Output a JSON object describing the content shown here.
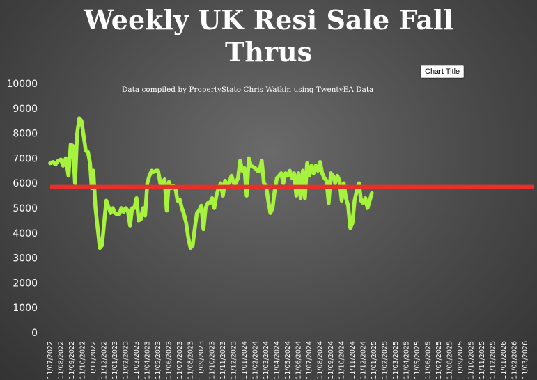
{
  "chart_data": {
    "type": "line",
    "title_lines": [
      "Weekly UK Resi Sale Fall",
      "Thrus"
    ],
    "subtitle": "Data compiled by PropertyStato Chris Watkin using TwentyEA Data",
    "tooltip": "Chart Title",
    "ylim": [
      0,
      10000
    ],
    "yticks": [
      "0",
      "1000",
      "2000",
      "3000",
      "4000",
      "5000",
      "6000",
      "7000",
      "8000",
      "9000",
      "10000"
    ],
    "xticks": [
      "11/07/2022",
      "11/08/2022",
      "11/09/2022",
      "11/10/2022",
      "11/11/2022",
      "11/12/2022",
      "11/01/2023",
      "11/02/2023",
      "11/03/2023",
      "11/04/2023",
      "11/05/2023",
      "11/06/2023",
      "11/07/2023",
      "11/08/2023",
      "11/09/2023",
      "11/10/2023",
      "11/11/2023",
      "11/12/2023",
      "11/01/2024",
      "11/02/2024",
      "11/03/2024",
      "11/04/2024",
      "11/05/2024",
      "11/06/2024",
      "11/07/2024",
      "11/08/2024",
      "11/09/2024",
      "11/10/2024",
      "11/11/2024",
      "11/12/2024",
      "11/01/2025",
      "11/02/2025",
      "11/03/2025",
      "11/04/2025",
      "11/05/2025",
      "11/06/2025",
      "11/07/2025",
      "11/08/2025",
      "11/09/2025",
      "11/10/2025",
      "11/11/2025",
      "11/12/2025",
      "11/01/2026",
      "11/02/2026",
      "11/03/2026"
    ],
    "grid": false,
    "legend": "none",
    "average_line": {
      "value": 5850,
      "color": "#e8302a"
    },
    "series": [
      {
        "color": "#a6f23c",
        "points": [
          [
            0,
            6800
          ],
          [
            0.25,
            6850
          ],
          [
            0.5,
            6750
          ],
          [
            0.75,
            6900
          ],
          [
            1.0,
            6950
          ],
          [
            1.2,
            6700
          ],
          [
            1.45,
            7000
          ],
          [
            1.7,
            6300
          ],
          [
            1.9,
            7550
          ],
          [
            2.1,
            7500
          ],
          [
            2.3,
            6000
          ],
          [
            2.5,
            8000
          ],
          [
            2.7,
            8600
          ],
          [
            2.9,
            8500
          ],
          [
            3.1,
            7900
          ],
          [
            3.3,
            7300
          ],
          [
            3.5,
            7250
          ],
          [
            3.7,
            6800
          ],
          [
            3.85,
            5800
          ],
          [
            4.0,
            6500
          ],
          [
            4.2,
            5000
          ],
          [
            4.4,
            4200
          ],
          [
            4.6,
            3400
          ],
          [
            4.8,
            3500
          ],
          [
            5.0,
            4400
          ],
          [
            5.2,
            5300
          ],
          [
            5.4,
            5050
          ],
          [
            5.6,
            4800
          ],
          [
            5.8,
            5000
          ],
          [
            6.0,
            4800
          ],
          [
            6.2,
            4750
          ],
          [
            6.4,
            4750
          ],
          [
            6.6,
            5000
          ],
          [
            6.8,
            4850
          ],
          [
            7.0,
            5000
          ],
          [
            7.2,
            4900
          ],
          [
            7.4,
            4300
          ],
          [
            7.6,
            5000
          ],
          [
            7.8,
            5000
          ],
          [
            8.0,
            5400
          ],
          [
            8.2,
            4500
          ],
          [
            8.4,
            4550
          ],
          [
            8.6,
            5000
          ],
          [
            8.8,
            4700
          ],
          [
            9.0,
            6000
          ],
          [
            9.2,
            6300
          ],
          [
            9.4,
            6500
          ],
          [
            9.6,
            6450
          ],
          [
            9.8,
            6500
          ],
          [
            10.0,
            6500
          ],
          [
            10.2,
            6000
          ],
          [
            10.4,
            6000
          ],
          [
            10.6,
            6150
          ],
          [
            10.8,
            4900
          ],
          [
            11.0,
            6050
          ],
          [
            11.2,
            5800
          ],
          [
            11.4,
            5900
          ],
          [
            11.6,
            5800
          ],
          [
            11.8,
            5300
          ],
          [
            12.0,
            5350
          ],
          [
            12.2,
            5000
          ],
          [
            12.4,
            4750
          ],
          [
            12.6,
            4400
          ],
          [
            12.8,
            3800
          ],
          [
            13.0,
            3400
          ],
          [
            13.2,
            3500
          ],
          [
            13.4,
            4200
          ],
          [
            13.6,
            4800
          ],
          [
            13.8,
            4900
          ],
          [
            14.0,
            5100
          ],
          [
            14.2,
            4150
          ],
          [
            14.4,
            5000
          ],
          [
            14.6,
            5200
          ],
          [
            14.8,
            5200
          ],
          [
            15.0,
            5400
          ],
          [
            15.2,
            5000
          ],
          [
            15.4,
            5500
          ],
          [
            15.6,
            5800
          ],
          [
            15.8,
            6000
          ],
          [
            16.0,
            5500
          ],
          [
            16.2,
            6100
          ],
          [
            16.4,
            5900
          ],
          [
            16.6,
            6050
          ],
          [
            16.8,
            6300
          ],
          [
            17.0,
            6000
          ],
          [
            17.2,
            6000
          ],
          [
            17.4,
            6200
          ],
          [
            17.6,
            6900
          ],
          [
            17.8,
            6500
          ],
          [
            18.0,
            6600
          ],
          [
            18.2,
            5500
          ],
          [
            18.4,
            7000
          ],
          [
            18.6,
            6700
          ],
          [
            18.8,
            6650
          ],
          [
            19.0,
            6600
          ],
          [
            19.2,
            6500
          ],
          [
            19.4,
            6500
          ],
          [
            19.6,
            6900
          ],
          [
            19.8,
            6000
          ],
          [
            20.0,
            5900
          ],
          [
            20.2,
            5300
          ],
          [
            20.4,
            4800
          ],
          [
            20.6,
            5000
          ],
          [
            20.8,
            5700
          ],
          [
            21.0,
            6200
          ],
          [
            21.2,
            6300
          ],
          [
            21.4,
            6400
          ],
          [
            21.6,
            6000
          ],
          [
            21.8,
            6400
          ],
          [
            22.0,
            6300
          ],
          [
            22.2,
            6500
          ],
          [
            22.4,
            6200
          ],
          [
            22.6,
            6400
          ],
          [
            22.8,
            5500
          ],
          [
            23.0,
            6400
          ],
          [
            23.2,
            5400
          ],
          [
            23.4,
            6500
          ],
          [
            23.6,
            5400
          ],
          [
            23.8,
            6800
          ],
          [
            24.0,
            6300
          ],
          [
            24.2,
            6700
          ],
          [
            24.4,
            6400
          ],
          [
            24.6,
            6700
          ],
          [
            24.8,
            6500
          ],
          [
            25.0,
            6850
          ],
          [
            25.2,
            6400
          ],
          [
            25.4,
            6200
          ],
          [
            25.6,
            6100
          ],
          [
            25.8,
            5200
          ],
          [
            26.0,
            6400
          ],
          [
            26.2,
            6300
          ],
          [
            26.4,
            6000
          ],
          [
            26.6,
            6300
          ],
          [
            26.8,
            6100
          ],
          [
            27.0,
            5300
          ],
          [
            27.2,
            6000
          ],
          [
            27.4,
            5400
          ],
          [
            27.6,
            5100
          ],
          [
            27.8,
            4200
          ],
          [
            28.0,
            4400
          ],
          [
            28.2,
            5300
          ],
          [
            28.4,
            5700
          ],
          [
            28.6,
            6000
          ],
          [
            28.8,
            5300
          ],
          [
            29.0,
            5200
          ],
          [
            29.2,
            5400
          ],
          [
            29.4,
            5000
          ],
          [
            29.6,
            5300
          ],
          [
            29.8,
            5600
          ]
        ]
      }
    ]
  }
}
